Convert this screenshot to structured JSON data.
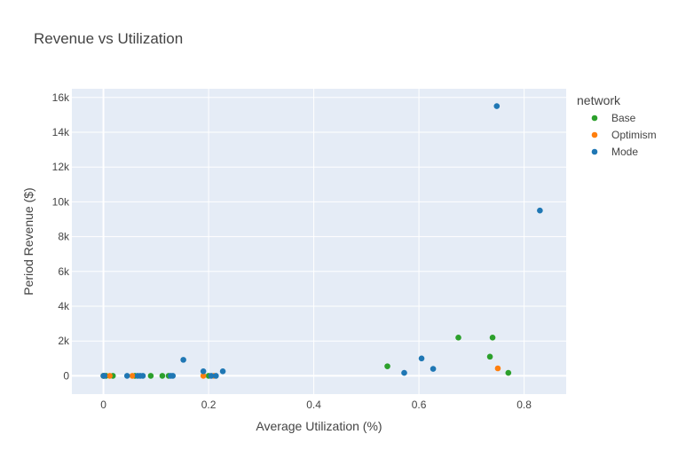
{
  "chart_data": {
    "type": "scatter",
    "title": "Revenue vs Utilization",
    "xlabel": "Average Utilization (%)",
    "ylabel": "Period Revenue ($)",
    "xlim": [
      -0.06,
      0.88
    ],
    "ylim": [
      -1050,
      16500
    ],
    "xticks": [
      0,
      0.2,
      0.4,
      0.6,
      0.8
    ],
    "xtick_labels": [
      "0",
      "0.2",
      "0.4",
      "0.6",
      "0.8"
    ],
    "yticks": [
      0,
      2000,
      4000,
      6000,
      8000,
      10000,
      12000,
      14000,
      16000
    ],
    "ytick_labels": [
      "0",
      "2k",
      "4k",
      "6k",
      "8k",
      "10k",
      "12k",
      "14k",
      "16k"
    ],
    "grid": true,
    "legend": {
      "title": "network",
      "position": "right"
    },
    "series": [
      {
        "name": "Base",
        "color": "#2ca02c",
        "points": [
          [
            0.0,
            0
          ],
          [
            0.005,
            0
          ],
          [
            0.018,
            0
          ],
          [
            0.06,
            0
          ],
          [
            0.09,
            0
          ],
          [
            0.112,
            0
          ],
          [
            0.124,
            0
          ],
          [
            0.2,
            0
          ],
          [
            0.54,
            550
          ],
          [
            0.675,
            2200
          ],
          [
            0.735,
            1100
          ],
          [
            0.74,
            2200
          ],
          [
            0.77,
            170
          ]
        ]
      },
      {
        "name": "Optimism",
        "color": "#ff7f0e",
        "points": [
          [
            0.0,
            0
          ],
          [
            0.012,
            0
          ],
          [
            0.055,
            0
          ],
          [
            0.19,
            0
          ],
          [
            0.21,
            0
          ],
          [
            0.75,
            430
          ]
        ]
      },
      {
        "name": "Mode",
        "color": "#1f77b4",
        "points": [
          [
            0.0,
            0
          ],
          [
            0.002,
            0
          ],
          [
            0.045,
            0
          ],
          [
            0.065,
            0
          ],
          [
            0.07,
            0
          ],
          [
            0.075,
            0
          ],
          [
            0.128,
            0
          ],
          [
            0.132,
            0
          ],
          [
            0.152,
            920
          ],
          [
            0.19,
            260
          ],
          [
            0.205,
            0
          ],
          [
            0.214,
            0
          ],
          [
            0.227,
            260
          ],
          [
            0.572,
            170
          ],
          [
            0.605,
            1000
          ],
          [
            0.627,
            400
          ],
          [
            0.748,
            15500
          ],
          [
            0.83,
            9500
          ]
        ]
      }
    ]
  }
}
